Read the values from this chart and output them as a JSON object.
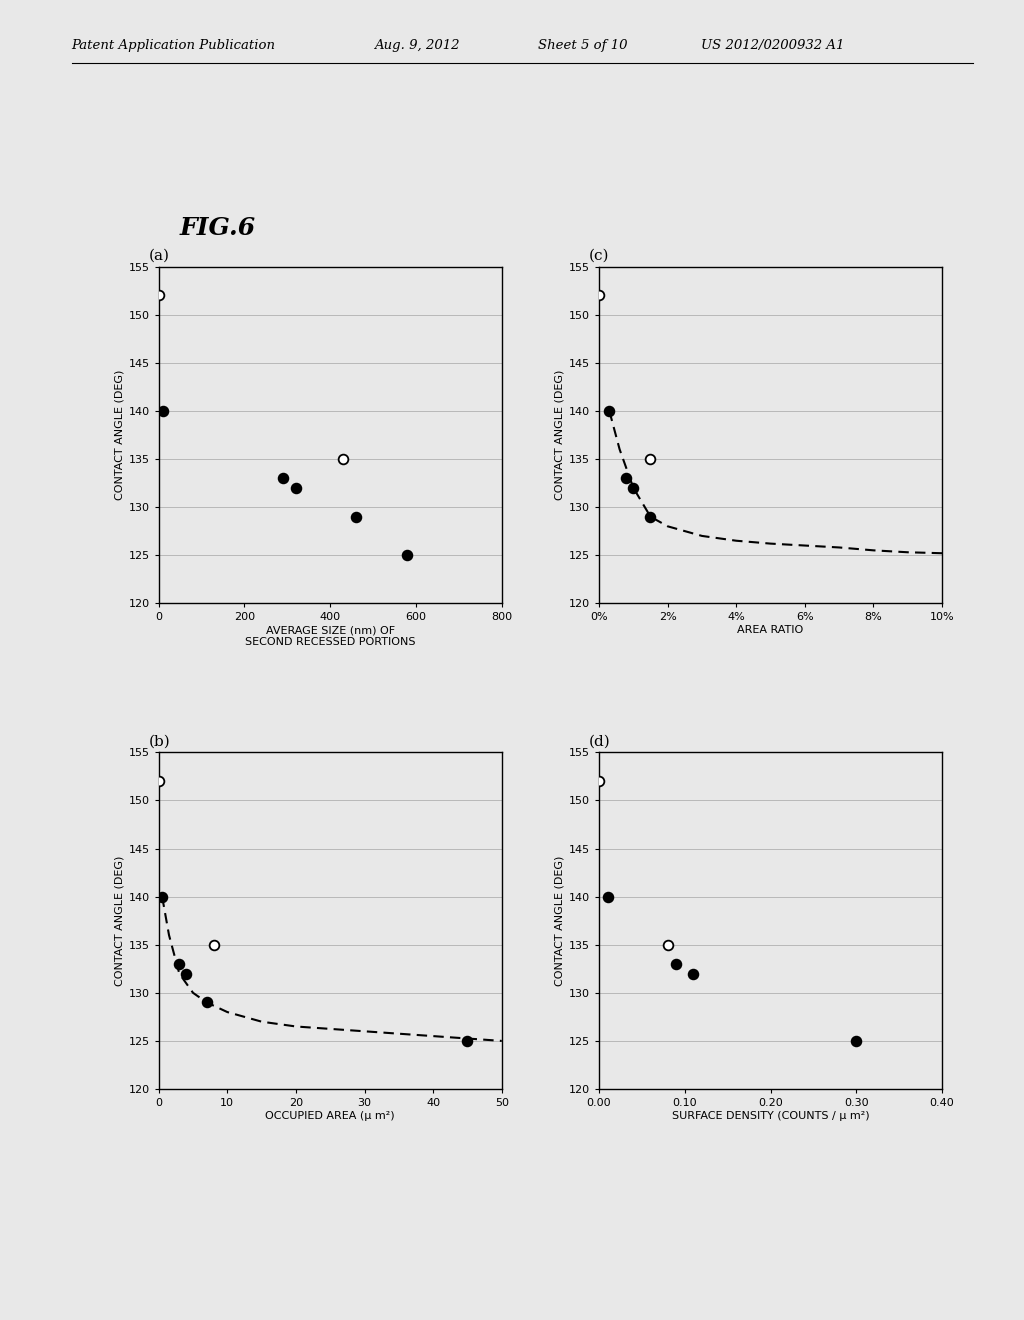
{
  "title": "FIG.6",
  "header_left": "Patent Application Publication",
  "header_date": "Aug. 9, 2012",
  "header_sheet": "Sheet 5 of 10",
  "header_patent": "US 2012/0200932 A1",
  "plots": {
    "a": {
      "label": "(a)",
      "xlabel_line1": "AVERAGE SIZE (nm) OF",
      "xlabel_line2": "SECOND RECESSED PORTIONS",
      "ylabel": "CONTACT ANGLE (DEG)",
      "xlim": [
        0,
        800
      ],
      "ylim": [
        120,
        155
      ],
      "xticks": [
        0,
        200,
        400,
        600,
        800
      ],
      "xtick_labels": [
        "0",
        "200",
        "400",
        "600",
        "800"
      ],
      "yticks": [
        120,
        125,
        130,
        135,
        140,
        145,
        150,
        155
      ],
      "open_points": [
        [
          0,
          152
        ],
        [
          430,
          135
        ]
      ],
      "closed_points": [
        [
          10,
          140
        ],
        [
          290,
          133
        ],
        [
          320,
          132
        ],
        [
          460,
          129
        ],
        [
          580,
          125
        ]
      ],
      "has_curve": false
    },
    "b": {
      "label": "(b)",
      "xlabel_line1": "OCCUPIED AREA (μ m²)",
      "xlabel_line2": "",
      "ylabel": "CONTACT ANGLE (DEG)",
      "xlim": [
        0,
        50
      ],
      "ylim": [
        120,
        155
      ],
      "xticks": [
        0,
        10,
        20,
        30,
        40,
        50
      ],
      "xtick_labels": [
        "0",
        "10",
        "20",
        "30",
        "40",
        "50"
      ],
      "yticks": [
        120,
        125,
        130,
        135,
        140,
        145,
        150,
        155
      ],
      "open_points": [
        [
          0,
          152
        ],
        [
          8,
          135
        ]
      ],
      "closed_points": [
        [
          0.5,
          140
        ],
        [
          3,
          133
        ],
        [
          4,
          132
        ],
        [
          7,
          129
        ],
        [
          45,
          125
        ]
      ],
      "has_curve": true,
      "curve_x": [
        0.5,
        1.5,
        3,
        5,
        7,
        10,
        15,
        20,
        30,
        40,
        50
      ],
      "curve_y": [
        140,
        136,
        132,
        130,
        129,
        128,
        127,
        126.5,
        126,
        125.5,
        125
      ]
    },
    "c": {
      "label": "(c)",
      "xlabel_line1": "AREA RATIO",
      "xlabel_line2": "",
      "ylabel": "CONTACT ANGLE (DEG)",
      "xlim": [
        0,
        10
      ],
      "ylim": [
        120,
        155
      ],
      "xticks": [
        0,
        2,
        4,
        6,
        8,
        10
      ],
      "xtick_labels": [
        "0%",
        "2%",
        "4%",
        "6%",
        "8%",
        "10%"
      ],
      "yticks": [
        120,
        125,
        130,
        135,
        140,
        145,
        150,
        155
      ],
      "open_points": [
        [
          0,
          152
        ],
        [
          1.5,
          135
        ]
      ],
      "closed_points": [
        [
          0.3,
          140
        ],
        [
          0.8,
          133
        ],
        [
          1.0,
          132
        ],
        [
          1.5,
          129
        ]
      ],
      "has_curve": true,
      "curve_x": [
        0.3,
        0.6,
        1.0,
        1.5,
        2.0,
        2.5,
        3.0,
        4.0,
        5.0,
        6.0,
        7.0,
        8.0,
        9.0,
        10.0
      ],
      "curve_y": [
        140,
        136,
        132,
        129,
        128,
        127.5,
        127,
        126.5,
        126.2,
        126,
        125.8,
        125.5,
        125.3,
        125.2
      ]
    },
    "d": {
      "label": "(d)",
      "xlabel_line1": "SURFACE DENSITY (COUNTS / μ m²)",
      "xlabel_line2": "",
      "ylabel": "CONTACT ANGLE (DEG)",
      "xlim": [
        0,
        0.4
      ],
      "ylim": [
        120,
        155
      ],
      "xticks": [
        0.0,
        0.1,
        0.2,
        0.3,
        0.4
      ],
      "xtick_labels": [
        "0.00",
        "0.10",
        "0.20",
        "0.30",
        "0.40"
      ],
      "yticks": [
        120,
        125,
        130,
        135,
        140,
        145,
        150,
        155
      ],
      "open_points": [
        [
          0,
          152
        ],
        [
          0.08,
          135
        ]
      ],
      "closed_points": [
        [
          0.01,
          140
        ],
        [
          0.09,
          133
        ],
        [
          0.11,
          132
        ],
        [
          0.3,
          125
        ]
      ],
      "has_curve": false
    }
  },
  "background_color": "#f0f0f0",
  "plot_bg": "#f0f0f0",
  "grid_color": "#999999",
  "marker_size": 7
}
